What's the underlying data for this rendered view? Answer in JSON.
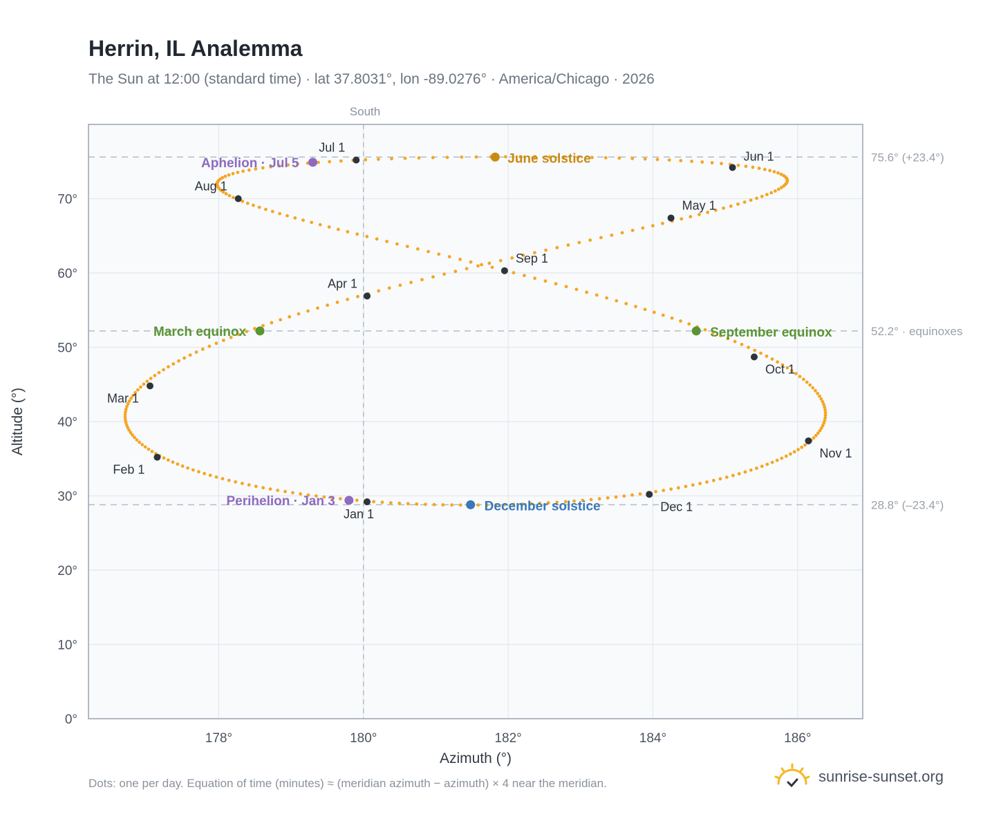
{
  "header": {
    "title": "Herrin, IL Analemma",
    "subtitle": "The Sun at 12:00 (standard time) · lat 37.8031°, lon -89.0276° · America/Chicago · 2026"
  },
  "footer": {
    "note": "Dots: one per day. Equation of time (minutes) ≈ (meridian azimuth − azimuth) × 4 near the meridian.",
    "brand": "sunrise-sunset.org"
  },
  "colors": {
    "path": "#f5a623",
    "month_marker": "#2d333b",
    "june_solstice": "#c98a12",
    "december_solstice": "#3a78b8",
    "equinox": "#5a9434",
    "apsis": "#8e6bbf",
    "reference": "#9aa1aa",
    "plot_bg": "#f8fafc",
    "grid": "#e3e7ec"
  },
  "chart_data": {
    "type": "scatter",
    "title": "Herrin, IL Analemma",
    "xlabel": "Azimuth (°)",
    "ylabel": "Altitude (°)",
    "xlim": [
      176.2,
      186.9
    ],
    "ylim": [
      0,
      80
    ],
    "grid": true,
    "x_ticks": [
      {
        "value": 178,
        "label": "178°"
      },
      {
        "value": 180,
        "label": "180°"
      },
      {
        "value": 182,
        "label": "182°"
      },
      {
        "value": 184,
        "label": "184°"
      },
      {
        "value": 186,
        "label": "186°"
      }
    ],
    "y_ticks": [
      {
        "value": 0,
        "label": "0°"
      },
      {
        "value": 10,
        "label": "10°"
      },
      {
        "value": 20,
        "label": "20°"
      },
      {
        "value": 30,
        "label": "30°"
      },
      {
        "value": 40,
        "label": "40°"
      },
      {
        "value": 50,
        "label": "50°"
      },
      {
        "value": 60,
        "label": "60°"
      },
      {
        "value": 70,
        "label": "70°"
      }
    ],
    "meridian": {
      "azimuth": 180,
      "label": "South"
    },
    "reference_lines": [
      {
        "altitude": 75.6,
        "label": "75.6° (+23.4°)"
      },
      {
        "altitude": 52.2,
        "label": "52.2° · equinoxes"
      },
      {
        "altitude": 28.8,
        "label": "28.8° (–23.4°)"
      }
    ],
    "month_markers": [
      {
        "label": "Jan 1",
        "azimuth": 180.05,
        "altitude": 29.2
      },
      {
        "label": "Feb 1",
        "azimuth": 177.15,
        "altitude": 35.2
      },
      {
        "label": "Mar 1",
        "azimuth": 177.05,
        "altitude": 44.8
      },
      {
        "label": "Apr 1",
        "azimuth": 180.05,
        "altitude": 56.9
      },
      {
        "label": "May 1",
        "azimuth": 184.25,
        "altitude": 67.4
      },
      {
        "label": "Jun 1",
        "azimuth": 185.1,
        "altitude": 74.2
      },
      {
        "label": "Jul 1",
        "azimuth": 179.9,
        "altitude": 75.2
      },
      {
        "label": "Aug 1",
        "azimuth": 178.27,
        "altitude": 70.0
      },
      {
        "label": "Sep 1",
        "azimuth": 181.95,
        "altitude": 60.3
      },
      {
        "label": "Oct 1",
        "azimuth": 185.4,
        "altitude": 48.7
      },
      {
        "label": "Nov 1",
        "azimuth": 186.15,
        "altitude": 37.4
      },
      {
        "label": "Dec 1",
        "azimuth": 183.95,
        "altitude": 30.2
      }
    ],
    "events": [
      {
        "label": "June solstice",
        "azimuth": 181.82,
        "altitude": 75.6,
        "color_key": "june_solstice"
      },
      {
        "label": "December solstice",
        "azimuth": 181.48,
        "altitude": 28.8,
        "color_key": "december_solstice"
      },
      {
        "label": "March equinox",
        "azimuth": 178.57,
        "altitude": 52.2,
        "color_key": "equinox"
      },
      {
        "label": "September equinox",
        "azimuth": 184.6,
        "altitude": 52.2,
        "color_key": "equinox"
      },
      {
        "label": "Aphelion · Jul 5",
        "azimuth": 179.3,
        "altitude": 74.9,
        "color_key": "apsis"
      },
      {
        "label": "Perihelion · Jan 3",
        "azimuth": 179.8,
        "altitude": 29.4,
        "color_key": "apsis"
      }
    ]
  }
}
